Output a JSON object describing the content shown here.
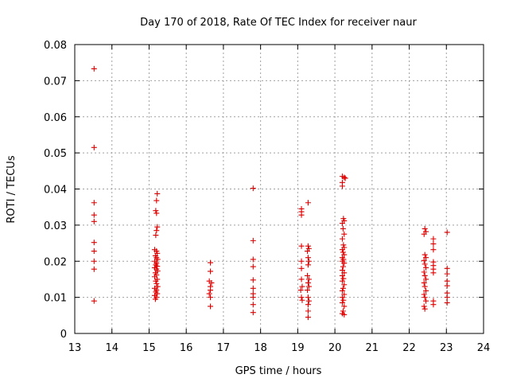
{
  "chart_data": {
    "type": "scatter",
    "title": "Day 170 of 2018, Rate Of TEC Index for receiver naur",
    "xlabel": "GPS time / hours",
    "ylabel": "ROTI / TECUs",
    "xlim": [
      13,
      24
    ],
    "ylim": [
      0,
      0.08
    ],
    "xticks": [
      "13",
      "14",
      "15",
      "16",
      "17",
      "18",
      "19",
      "20",
      "21",
      "22",
      "23",
      "24"
    ],
    "yticks": [
      "0",
      "0.01",
      "0.02",
      "0.03",
      "0.04",
      "0.05",
      "0.06",
      "0.07",
      "0.08"
    ],
    "grid": true,
    "marker": "plus",
    "color": "#dd0000",
    "series": [
      {
        "name": "ROTI",
        "points": [
          [
            13.52,
            0.0733
          ],
          [
            13.52,
            0.0515
          ],
          [
            13.52,
            0.0362
          ],
          [
            13.52,
            0.0328
          ],
          [
            13.52,
            0.031
          ],
          [
            13.52,
            0.0252
          ],
          [
            13.52,
            0.0228
          ],
          [
            13.52,
            0.02
          ],
          [
            13.52,
            0.0178
          ],
          [
            13.52,
            0.009
          ],
          [
            15.22,
            0.0387
          ],
          [
            15.2,
            0.0368
          ],
          [
            15.18,
            0.034
          ],
          [
            15.2,
            0.0333
          ],
          [
            15.22,
            0.0295
          ],
          [
            15.2,
            0.0285
          ],
          [
            15.18,
            0.0272
          ],
          [
            15.15,
            0.0232
          ],
          [
            15.2,
            0.0228
          ],
          [
            15.22,
            0.0222
          ],
          [
            15.17,
            0.0215
          ],
          [
            15.2,
            0.021
          ],
          [
            15.23,
            0.0205
          ],
          [
            15.15,
            0.02
          ],
          [
            15.2,
            0.0195
          ],
          [
            15.18,
            0.019
          ],
          [
            15.22,
            0.0186
          ],
          [
            15.15,
            0.0182
          ],
          [
            15.2,
            0.0178
          ],
          [
            15.23,
            0.0173
          ],
          [
            15.17,
            0.0168
          ],
          [
            15.2,
            0.0162
          ],
          [
            15.15,
            0.0157
          ],
          [
            15.22,
            0.015
          ],
          [
            15.18,
            0.0145
          ],
          [
            15.2,
            0.0138
          ],
          [
            15.23,
            0.013
          ],
          [
            15.15,
            0.0125
          ],
          [
            15.2,
            0.012
          ],
          [
            15.18,
            0.0115
          ],
          [
            15.22,
            0.011
          ],
          [
            15.15,
            0.0105
          ],
          [
            15.2,
            0.01
          ],
          [
            15.17,
            0.0095
          ],
          [
            16.65,
            0.0196
          ],
          [
            16.65,
            0.0172
          ],
          [
            16.62,
            0.0145
          ],
          [
            16.68,
            0.014
          ],
          [
            16.65,
            0.013
          ],
          [
            16.65,
            0.012
          ],
          [
            16.62,
            0.011
          ],
          [
            16.65,
            0.01
          ],
          [
            16.65,
            0.0075
          ],
          [
            17.8,
            0.0402
          ],
          [
            17.8,
            0.0257
          ],
          [
            17.8,
            0.0205
          ],
          [
            17.8,
            0.0185
          ],
          [
            17.8,
            0.0148
          ],
          [
            17.8,
            0.0125
          ],
          [
            17.8,
            0.011
          ],
          [
            17.8,
            0.01
          ],
          [
            17.8,
            0.008
          ],
          [
            17.8,
            0.0058
          ],
          [
            19.1,
            0.0345
          ],
          [
            19.1,
            0.0337
          ],
          [
            19.1,
            0.0328
          ],
          [
            19.1,
            0.0242
          ],
          [
            19.1,
            0.02
          ],
          [
            19.1,
            0.018
          ],
          [
            19.1,
            0.015
          ],
          [
            19.12,
            0.013
          ],
          [
            19.08,
            0.012
          ],
          [
            19.1,
            0.01
          ],
          [
            19.12,
            0.0092
          ],
          [
            19.28,
            0.0362
          ],
          [
            19.28,
            0.0242
          ],
          [
            19.3,
            0.0235
          ],
          [
            19.26,
            0.0228
          ],
          [
            19.28,
            0.021
          ],
          [
            19.3,
            0.02
          ],
          [
            19.28,
            0.019
          ],
          [
            19.26,
            0.016
          ],
          [
            19.3,
            0.015
          ],
          [
            19.28,
            0.014
          ],
          [
            19.3,
            0.013
          ],
          [
            19.26,
            0.012
          ],
          [
            19.28,
            0.01
          ],
          [
            19.3,
            0.009
          ],
          [
            19.28,
            0.008
          ],
          [
            19.28,
            0.0062
          ],
          [
            19.28,
            0.0045
          ],
          [
            20.2,
            0.0435
          ],
          [
            20.25,
            0.0432
          ],
          [
            20.28,
            0.043
          ],
          [
            20.2,
            0.0418
          ],
          [
            20.2,
            0.0408
          ],
          [
            20.23,
            0.0318
          ],
          [
            20.25,
            0.0312
          ],
          [
            20.2,
            0.0305
          ],
          [
            20.22,
            0.029
          ],
          [
            20.25,
            0.0275
          ],
          [
            20.2,
            0.0262
          ],
          [
            20.23,
            0.0245
          ],
          [
            20.25,
            0.0238
          ],
          [
            20.2,
            0.0232
          ],
          [
            20.22,
            0.0225
          ],
          [
            20.25,
            0.0218
          ],
          [
            20.2,
            0.021
          ],
          [
            20.23,
            0.0205
          ],
          [
            20.2,
            0.02
          ],
          [
            20.25,
            0.0195
          ],
          [
            20.22,
            0.0185
          ],
          [
            20.2,
            0.0175
          ],
          [
            20.25,
            0.0168
          ],
          [
            20.2,
            0.016
          ],
          [
            20.23,
            0.0152
          ],
          [
            20.2,
            0.0145
          ],
          [
            20.25,
            0.0135
          ],
          [
            20.22,
            0.0125
          ],
          [
            20.2,
            0.0118
          ],
          [
            20.25,
            0.0108
          ],
          [
            20.2,
            0.01
          ],
          [
            20.23,
            0.0092
          ],
          [
            20.2,
            0.0085
          ],
          [
            20.25,
            0.0075
          ],
          [
            20.22,
            0.0062
          ],
          [
            20.2,
            0.0055
          ],
          [
            20.25,
            0.0052
          ],
          [
            22.42,
            0.029
          ],
          [
            22.45,
            0.0282
          ],
          [
            22.4,
            0.0275
          ],
          [
            22.42,
            0.0218
          ],
          [
            22.45,
            0.021
          ],
          [
            22.4,
            0.0202
          ],
          [
            22.42,
            0.0192
          ],
          [
            22.45,
            0.0182
          ],
          [
            22.4,
            0.017
          ],
          [
            22.42,
            0.016
          ],
          [
            22.45,
            0.015
          ],
          [
            22.4,
            0.014
          ],
          [
            22.42,
            0.013
          ],
          [
            22.45,
            0.0118
          ],
          [
            22.4,
            0.0108
          ],
          [
            22.42,
            0.01
          ],
          [
            22.45,
            0.009
          ],
          [
            22.4,
            0.0075
          ],
          [
            22.42,
            0.0068
          ],
          [
            22.65,
            0.0262
          ],
          [
            22.65,
            0.0248
          ],
          [
            22.65,
            0.0232
          ],
          [
            22.65,
            0.0198
          ],
          [
            22.65,
            0.0188
          ],
          [
            22.65,
            0.0178
          ],
          [
            22.65,
            0.0168
          ],
          [
            22.65,
            0.009
          ],
          [
            22.65,
            0.008
          ],
          [
            23.02,
            0.028
          ],
          [
            23.02,
            0.018
          ],
          [
            23.02,
            0.0165
          ],
          [
            23.02,
            0.0145
          ],
          [
            23.02,
            0.0132
          ],
          [
            23.02,
            0.0112
          ],
          [
            23.02,
            0.01
          ],
          [
            23.02,
            0.0085
          ]
        ]
      }
    ]
  }
}
